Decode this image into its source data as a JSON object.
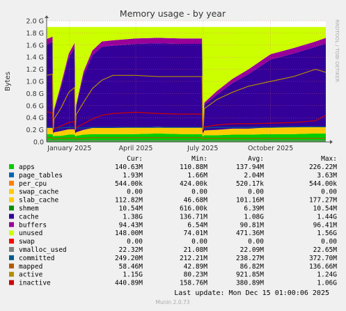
{
  "chart_data": {
    "type": "area",
    "title": "Memory usage - by year",
    "ylabel": "Bytes",
    "watermark": "RRDTOOL / TOBI OETIKER",
    "ylim": [
      0,
      2.0
    ],
    "y_unit": "G",
    "y_ticks": [
      "0.0",
      "0.2 G",
      "0.4 G",
      "0.6 G",
      "0.8 G",
      "1.0 G",
      "1.2 G",
      "1.4 G",
      "1.6 G",
      "1.8 G",
      "2.0 G"
    ],
    "x_ticks": [
      "January 2025",
      "April 2025",
      "July 2025",
      "October 2025"
    ],
    "x_range": [
      "2024-12-01",
      "2025-12-15"
    ],
    "x_tick_dates": [
      "2025-01-01",
      "2025-04-01",
      "2025-07-01",
      "2025-10-01"
    ],
    "grid": true,
    "legend_position": "bottom",
    "legend_headers": [
      "Cur:",
      "Min:",
      "Avg:",
      "Max:"
    ],
    "series": [
      {
        "name": "apps",
        "color": "#00cc00",
        "cur": "140.63M",
        "min": "110.88M",
        "avg": "137.94M",
        "max": "226.22M"
      },
      {
        "name": "page_tables",
        "color": "#0066b3",
        "cur": "1.93M",
        "min": "1.66M",
        "avg": "2.04M",
        "max": "3.63M"
      },
      {
        "name": "per_cpu",
        "color": "#ff8000",
        "cur": "544.00k",
        "min": "424.00k",
        "avg": "520.17k",
        "max": "544.00k"
      },
      {
        "name": "swap_cache",
        "color": "#ffcc00",
        "cur": "0.00",
        "min": "0.00",
        "avg": "0.00",
        "max": "0.00"
      },
      {
        "name": "slab_cache",
        "color": "#ffcc00",
        "cur": "112.82M",
        "min": "46.68M",
        "avg": "101.16M",
        "max": "177.27M"
      },
      {
        "name": "shmem",
        "color": "#008f00",
        "cur": "10.54M",
        "min": "616.00k",
        "avg": "6.39M",
        "max": "10.54M"
      },
      {
        "name": "cache",
        "color": "#330099",
        "cur": "1.38G",
        "min": "136.71M",
        "avg": "1.08G",
        "max": "1.44G"
      },
      {
        "name": "buffers",
        "color": "#990099",
        "cur": "94.43M",
        "min": "6.54M",
        "avg": "90.81M",
        "max": "96.41M"
      },
      {
        "name": "unused",
        "color": "#ccff00",
        "cur": "148.00M",
        "min": "74.01M",
        "avg": "471.36M",
        "max": "1.56G"
      },
      {
        "name": "swap",
        "color": "#ff0000",
        "cur": "0.00",
        "min": "0.00",
        "avg": "0.00",
        "max": "0.00"
      },
      {
        "name": "vmalloc_used",
        "color": "#808080",
        "cur": "22.32M",
        "min": "21.08M",
        "avg": "22.09M",
        "max": "22.65M"
      },
      {
        "name": "committed",
        "color": "#005b8f",
        "cur": "249.20M",
        "min": "212.21M",
        "avg": "238.27M",
        "max": "372.70M"
      },
      {
        "name": "mapped",
        "color": "#b35a00",
        "cur": "58.46M",
        "min": "42.89M",
        "avg": "86.82M",
        "max": "136.66M"
      },
      {
        "name": "active",
        "color": "#b38f00",
        "cur": "1.15G",
        "min": "80.23M",
        "avg": "921.85M",
        "max": "1.24G"
      },
      {
        "name": "inactive",
        "color": "#cc0000",
        "cur": "440.89M",
        "min": "158.76M",
        "avg": "380.89M",
        "max": "1.06G"
      }
    ],
    "profile": {
      "x": [
        "2024-12-01",
        "2024-12-09",
        "2024-12-10",
        "2024-12-11",
        "2024-12-20",
        "2024-12-31",
        "2025-01-08",
        "2025-01-09",
        "2025-01-10",
        "2025-01-20",
        "2025-02-01",
        "2025-02-14",
        "2025-03-01",
        "2025-04-01",
        "2025-05-01",
        "2025-06-01",
        "2025-06-30",
        "2025-07-01",
        "2025-07-02",
        "2025-07-03",
        "2025-07-20",
        "2025-08-10",
        "2025-09-01",
        "2025-10-01",
        "2025-11-01",
        "2025-12-01",
        "2025-12-15"
      ],
      "apps": [
        0.13,
        0.13,
        0.09,
        0.1,
        0.1,
        0.12,
        0.12,
        0.09,
        0.1,
        0.12,
        0.13,
        0.13,
        0.13,
        0.13,
        0.14,
        0.13,
        0.13,
        0.09,
        0.1,
        0.11,
        0.11,
        0.12,
        0.12,
        0.13,
        0.13,
        0.14,
        0.14
      ],
      "slab_cache": [
        0.1,
        0.1,
        0.05,
        0.06,
        0.08,
        0.09,
        0.09,
        0.05,
        0.06,
        0.08,
        0.1,
        0.1,
        0.1,
        0.11,
        0.11,
        0.11,
        0.11,
        0.05,
        0.06,
        0.08,
        0.09,
        0.1,
        0.1,
        0.11,
        0.11,
        0.11,
        0.11
      ],
      "cache": [
        1.38,
        1.42,
        0.14,
        0.35,
        0.7,
        1.18,
        1.35,
        0.14,
        0.42,
        0.9,
        1.2,
        1.34,
        1.36,
        1.38,
        1.38,
        1.38,
        1.38,
        0.14,
        0.22,
        0.42,
        0.58,
        0.75,
        0.9,
        1.12,
        1.22,
        1.32,
        1.38
      ],
      "buffers": [
        0.09,
        0.09,
        0.01,
        0.03,
        0.05,
        0.07,
        0.08,
        0.01,
        0.03,
        0.06,
        0.08,
        0.09,
        0.09,
        0.09,
        0.09,
        0.09,
        0.09,
        0.01,
        0.02,
        0.04,
        0.06,
        0.07,
        0.08,
        0.09,
        0.09,
        0.09,
        0.09
      ],
      "committed": [
        0.24,
        0.24,
        0.22,
        0.23,
        0.23,
        0.24,
        0.24,
        0.22,
        0.23,
        0.23,
        0.24,
        0.24,
        0.24,
        0.24,
        0.24,
        0.24,
        0.24,
        0.22,
        0.23,
        0.23,
        0.24,
        0.24,
        0.24,
        0.24,
        0.25,
        0.25,
        0.25
      ],
      "active": [
        1.1,
        1.12,
        0.2,
        0.38,
        0.55,
        0.82,
        0.9,
        0.2,
        0.45,
        0.65,
        0.88,
        1.02,
        1.1,
        1.1,
        1.08,
        1.08,
        1.08,
        0.2,
        0.3,
        0.55,
        0.7,
        0.82,
        0.92,
        1.0,
        1.08,
        1.2,
        1.15
      ],
      "inactive": [
        0.5,
        0.48,
        0.2,
        0.22,
        0.26,
        0.32,
        0.34,
        0.2,
        0.24,
        0.3,
        0.38,
        0.44,
        0.47,
        0.49,
        0.47,
        0.46,
        0.46,
        0.2,
        0.22,
        0.25,
        0.28,
        0.3,
        0.3,
        0.31,
        0.32,
        0.35,
        0.44
      ],
      "mapped": [
        0.07,
        0.07,
        0.05,
        0.05,
        0.06,
        0.06,
        0.07,
        0.05,
        0.05,
        0.06,
        0.07,
        0.07,
        0.07,
        0.07,
        0.07,
        0.07,
        0.07,
        0.05,
        0.05,
        0.06,
        0.06,
        0.06,
        0.06,
        0.06,
        0.06,
        0.06,
        0.06
      ],
      "vmalloc_used": [
        0.02,
        0.02,
        0.02,
        0.02,
        0.02,
        0.02,
        0.02,
        0.02,
        0.02,
        0.02,
        0.02,
        0.02,
        0.02,
        0.02,
        0.02,
        0.02,
        0.02,
        0.02,
        0.02,
        0.02,
        0.02,
        0.02,
        0.02,
        0.02,
        0.02,
        0.02,
        0.02
      ]
    },
    "total_memory": 1.9
  },
  "footer": {
    "last_update": "Last update: Mon Dec 15 01:00:06 2025",
    "generator": "Munin 2.0.73"
  }
}
